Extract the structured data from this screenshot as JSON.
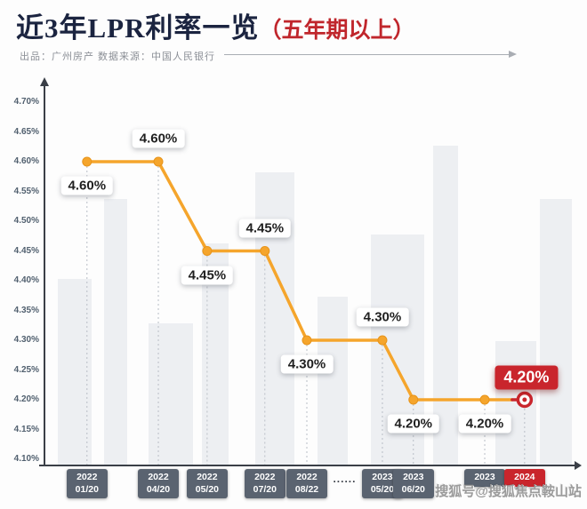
{
  "header": {
    "title_main": "近3年LPR利率一览",
    "title_paren": "（五年期以上）",
    "credits": "出品：广州房产  数据来源：中国人民银行"
  },
  "watermark": "搜狐号@搜狐焦点鞍山站",
  "colors": {
    "line": "#F5A52C",
    "marker": "#F5A52C",
    "highlight_red": "#C9252C",
    "axis": "#3A3F47",
    "leader": "#B9BEC6",
    "badge_bg": "#5A6370",
    "tick_label": "#51606F",
    "title": "#1B2440"
  },
  "chart_data": {
    "type": "line",
    "title": "近3年LPR利率一览（五年期以上）",
    "xlabel": "",
    "ylabel": "",
    "ylim": [
      4.1,
      4.7
    ],
    "ytick_step": 0.05,
    "ytick_labels": [
      "4.70%",
      "4.65%",
      "4.60%",
      "4.55%",
      "4.50%",
      "4.45%",
      "4.40%",
      "4.35%",
      "4.30%",
      "4.25%",
      "4.20%",
      "4.15%",
      "4.10%"
    ],
    "grid": false,
    "legend": "none",
    "categories": [
      "2022 01/20",
      "2022 04/20",
      "2022 05/20",
      "2022 07/20",
      "2022 08/22",
      "2023 05/20",
      "2023 06/20",
      "2023",
      "2024"
    ],
    "values": [
      4.6,
      4.6,
      4.45,
      4.45,
      4.3,
      4.3,
      4.2,
      4.2,
      4.2
    ],
    "points": [
      {
        "year": "2022",
        "date": "01/20",
        "value": 4.6,
        "label": "4.60%",
        "label_pos": "below",
        "highlight": false
      },
      {
        "year": "2022",
        "date": "04/20",
        "value": 4.6,
        "label": "4.60%",
        "label_pos": "above",
        "highlight": false
      },
      {
        "year": "2022",
        "date": "05/20",
        "value": 4.45,
        "label": "4.45%",
        "label_pos": "below",
        "highlight": false
      },
      {
        "year": "2022",
        "date": "07/20",
        "value": 4.45,
        "label": "4.45%",
        "label_pos": "above",
        "highlight": false
      },
      {
        "year": "2022",
        "date": "08/22",
        "value": 4.3,
        "label": "4.30%",
        "label_pos": "below",
        "highlight": false
      },
      {
        "year": "2023",
        "date": "05/20",
        "value": 4.3,
        "label": "4.30%",
        "label_pos": "above",
        "highlight": false
      },
      {
        "year": "2023",
        "date": "06/20",
        "value": 4.2,
        "label": "4.20%",
        "label_pos": "below",
        "highlight": false
      },
      {
        "year": "2023",
        "date": "",
        "value": 4.2,
        "label": "4.20%",
        "label_pos": "below",
        "highlight": false
      },
      {
        "year": "2024",
        "date": "",
        "value": 4.2,
        "label": "4.20%",
        "label_pos": "highlight",
        "highlight": true
      }
    ],
    "gap_separator": "......",
    "gap_after_index": 4
  }
}
